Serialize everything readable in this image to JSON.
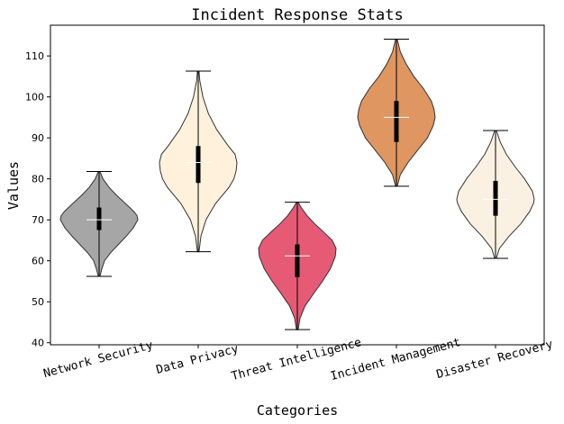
{
  "chart_data": {
    "type": "violin",
    "title": "Incident Response Stats",
    "xlabel": "Categories",
    "ylabel": "Values",
    "ylim": [
      39.5,
      117.5
    ],
    "yticks": [
      40,
      50,
      60,
      70,
      80,
      90,
      100,
      110
    ],
    "grid": false,
    "categories": [
      "Network Security",
      "Data Privacy",
      "Threat Intelligence",
      "Incident Management",
      "Disaster Recovery"
    ],
    "colors": [
      "#808080",
      "#FFEBCD",
      "#DC143C",
      "#D2691E",
      "#FAEBD7"
    ],
    "series": [
      {
        "min": 56.2,
        "q1": 67.5,
        "median": 70.0,
        "q3": 73.0,
        "max": 81.8,
        "profile": [
          [
            56.2,
            0.02
          ],
          [
            58,
            0.07
          ],
          [
            60,
            0.14
          ],
          [
            62,
            0.3
          ],
          [
            64,
            0.5
          ],
          [
            66,
            0.7
          ],
          [
            68,
            0.88
          ],
          [
            70,
            1.0
          ],
          [
            71,
            0.98
          ],
          [
            72,
            0.9
          ],
          [
            74,
            0.68
          ],
          [
            76,
            0.45
          ],
          [
            78,
            0.25
          ],
          [
            80,
            0.1
          ],
          [
            81.8,
            0.02
          ]
        ]
      },
      {
        "min": 62.2,
        "q1": 79.0,
        "median": 84.0,
        "q3": 88.0,
        "max": 106.3,
        "profile": [
          [
            62.2,
            0.02
          ],
          [
            66,
            0.07
          ],
          [
            70,
            0.2
          ],
          [
            74,
            0.45
          ],
          [
            78,
            0.8
          ],
          [
            80,
            0.92
          ],
          [
            82,
            0.98
          ],
          [
            84,
            1.0
          ],
          [
            86,
            0.95
          ],
          [
            88,
            0.78
          ],
          [
            92,
            0.48
          ],
          [
            96,
            0.26
          ],
          [
            100,
            0.12
          ],
          [
            104,
            0.04
          ],
          [
            106.3,
            0.02
          ]
        ]
      },
      {
        "min": 43.2,
        "q1": 56.0,
        "median": 61.2,
        "q3": 64.0,
        "max": 74.3,
        "profile": [
          [
            43.2,
            0.02
          ],
          [
            46,
            0.07
          ],
          [
            49,
            0.2
          ],
          [
            52,
            0.42
          ],
          [
            55,
            0.65
          ],
          [
            58,
            0.85
          ],
          [
            61,
            0.98
          ],
          [
            63,
            1.0
          ],
          [
            65,
            0.9
          ],
          [
            67,
            0.68
          ],
          [
            69,
            0.45
          ],
          [
            71,
            0.25
          ],
          [
            73,
            0.1
          ],
          [
            74.3,
            0.02
          ]
        ]
      },
      {
        "min": 78.2,
        "q1": 89.0,
        "median": 95.0,
        "q3": 99.0,
        "max": 114.1,
        "profile": [
          [
            78.2,
            0.02
          ],
          [
            81,
            0.1
          ],
          [
            84,
            0.3
          ],
          [
            87,
            0.55
          ],
          [
            90,
            0.8
          ],
          [
            93,
            0.95
          ],
          [
            95,
            1.0
          ],
          [
            97,
            0.97
          ],
          [
            99,
            0.9
          ],
          [
            102,
            0.7
          ],
          [
            105,
            0.45
          ],
          [
            108,
            0.25
          ],
          [
            111,
            0.1
          ],
          [
            114.1,
            0.02
          ]
        ]
      },
      {
        "min": 60.6,
        "q1": 71.0,
        "median": 75.0,
        "q3": 79.5,
        "max": 91.8,
        "profile": [
          [
            60.6,
            0.02
          ],
          [
            63,
            0.1
          ],
          [
            66,
            0.35
          ],
          [
            69,
            0.65
          ],
          [
            72,
            0.88
          ],
          [
            74,
            0.98
          ],
          [
            75,
            1.0
          ],
          [
            77,
            0.95
          ],
          [
            80,
            0.75
          ],
          [
            83,
            0.5
          ],
          [
            86,
            0.28
          ],
          [
            89,
            0.12
          ],
          [
            91.8,
            0.02
          ]
        ]
      }
    ]
  }
}
